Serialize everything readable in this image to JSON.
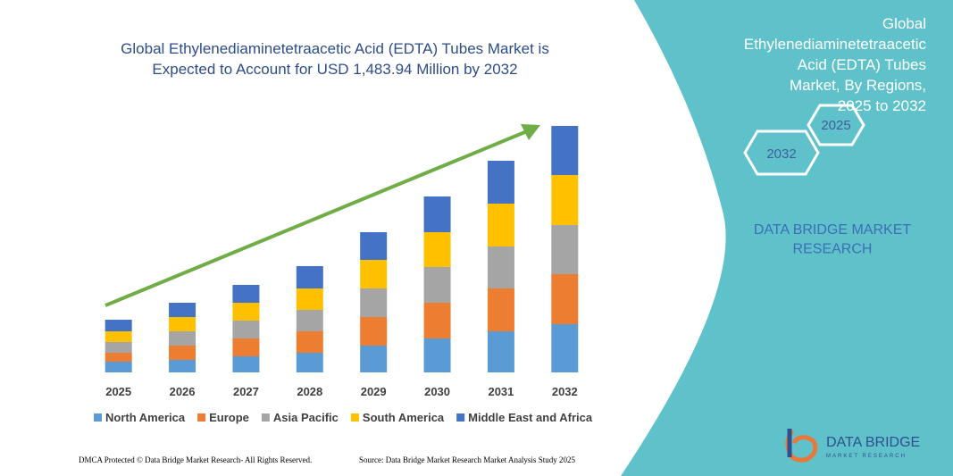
{
  "chart_data": {
    "type": "bar",
    "stacked": true,
    "title": "Global Ethylenediaminetetraacetic Acid (EDTA) Tubes Market is Expected to Account for USD 1,483.94 Million by 2032",
    "categories": [
      "2025",
      "2026",
      "2027",
      "2028",
      "2029",
      "2030",
      "2031",
      "2032"
    ],
    "series": [
      {
        "name": "North America",
        "color": "#5b9bd5",
        "values": [
          12,
          14,
          18,
          22,
          30,
          38,
          46,
          54
        ]
      },
      {
        "name": "Europe",
        "color": "#ed7d31",
        "values": [
          10,
          16,
          20,
          24,
          32,
          40,
          48,
          56
        ]
      },
      {
        "name": "Asia Pacific",
        "color": "#a5a5a5",
        "values": [
          12,
          16,
          20,
          24,
          32,
          40,
          47,
          55
        ]
      },
      {
        "name": "South America",
        "color": "#ffc000",
        "values": [
          12,
          16,
          20,
          24,
          32,
          39,
          48,
          56
        ]
      },
      {
        "name": "Middle East and Africa",
        "color": "#4472c4",
        "values": [
          13,
          16,
          20,
          25,
          31,
          40,
          48,
          55
        ]
      }
    ],
    "legend": "bottom"
  },
  "panel": {
    "title": "Global Ethylenediaminetetraacetic Acid (EDTA) Tubes Market, By Regions, 2025 to 2032",
    "hex_start": "2025",
    "hex_end": "2032",
    "brand": "DATA BRIDGE MARKET RESEARCH"
  },
  "logo": {
    "name": "DATA BRIDGE",
    "tagline": "MARKET RESEARCH"
  },
  "footer": {
    "left": "DMCA Protected © Data Bridge Market Research- All Rights Reserved.",
    "right": "Source: Data Bridge Market Research Market Analysis Study 2025"
  }
}
